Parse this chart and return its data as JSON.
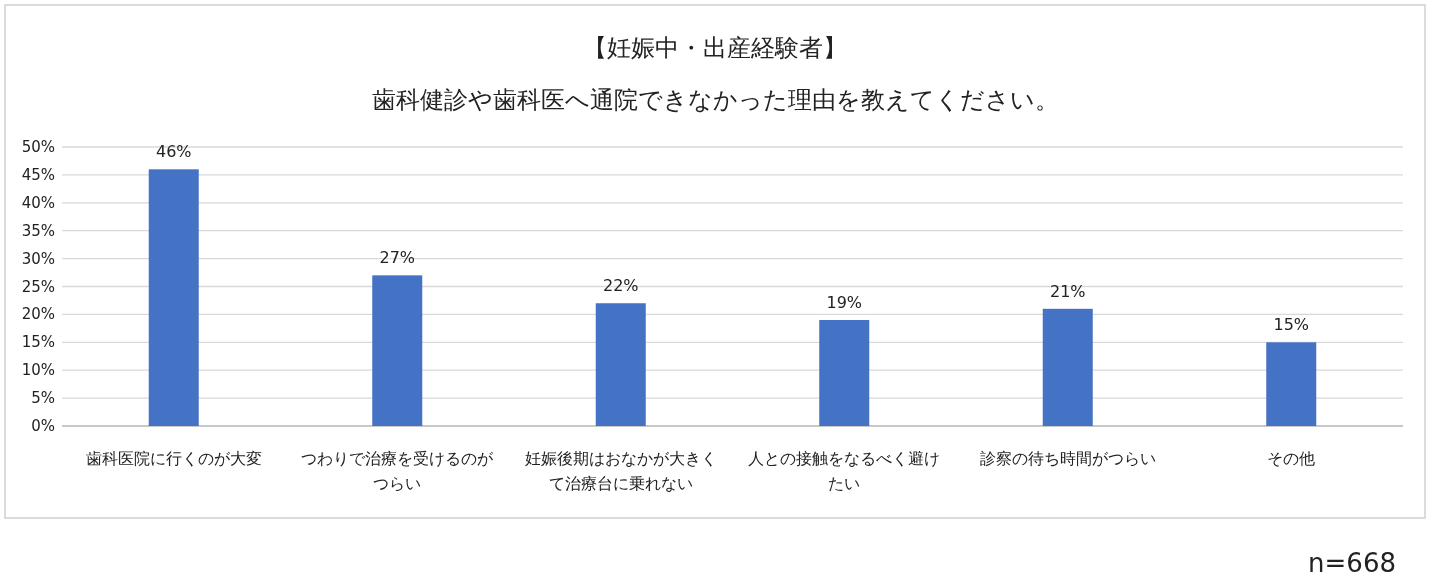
{
  "chart_data": {
    "type": "bar",
    "title": "【妊娠中・出産経験者】",
    "subtitle": "歯科健診や歯科医へ通院できなかった理由を教えてください。",
    "categories": [
      "歯科医院に行くのが大変",
      "つわりで治療を受けるのがつらい",
      "妊娠後期はおなかが大きくて治療台に乗れない",
      "人との接触をなるべく避けたい",
      "診察の待ち時間がつらい",
      "その他"
    ],
    "values": [
      46,
      27,
      22,
      19,
      21,
      15
    ],
    "value_labels": [
      "46%",
      "27%",
      "22%",
      "19%",
      "21%",
      "15%"
    ],
    "color": "#4472c4",
    "ylim": [
      0,
      50
    ],
    "yticks": [
      {
        "value": 0,
        "label": "0%"
      },
      {
        "value": 5,
        "label": "5%"
      },
      {
        "value": 10,
        "label": "10%"
      },
      {
        "value": 15,
        "label": "15%"
      },
      {
        "value": 20,
        "label": "20%"
      },
      {
        "value": 25,
        "label": "25%"
      },
      {
        "value": 30,
        "label": "30%"
      },
      {
        "value": 35,
        "label": "35%"
      },
      {
        "value": 40,
        "label": "40%"
      },
      {
        "value": 45,
        "label": "45%"
      },
      {
        "value": 50,
        "label": "50%"
      }
    ],
    "grid": "y",
    "annotations": [
      "n=668"
    ]
  }
}
